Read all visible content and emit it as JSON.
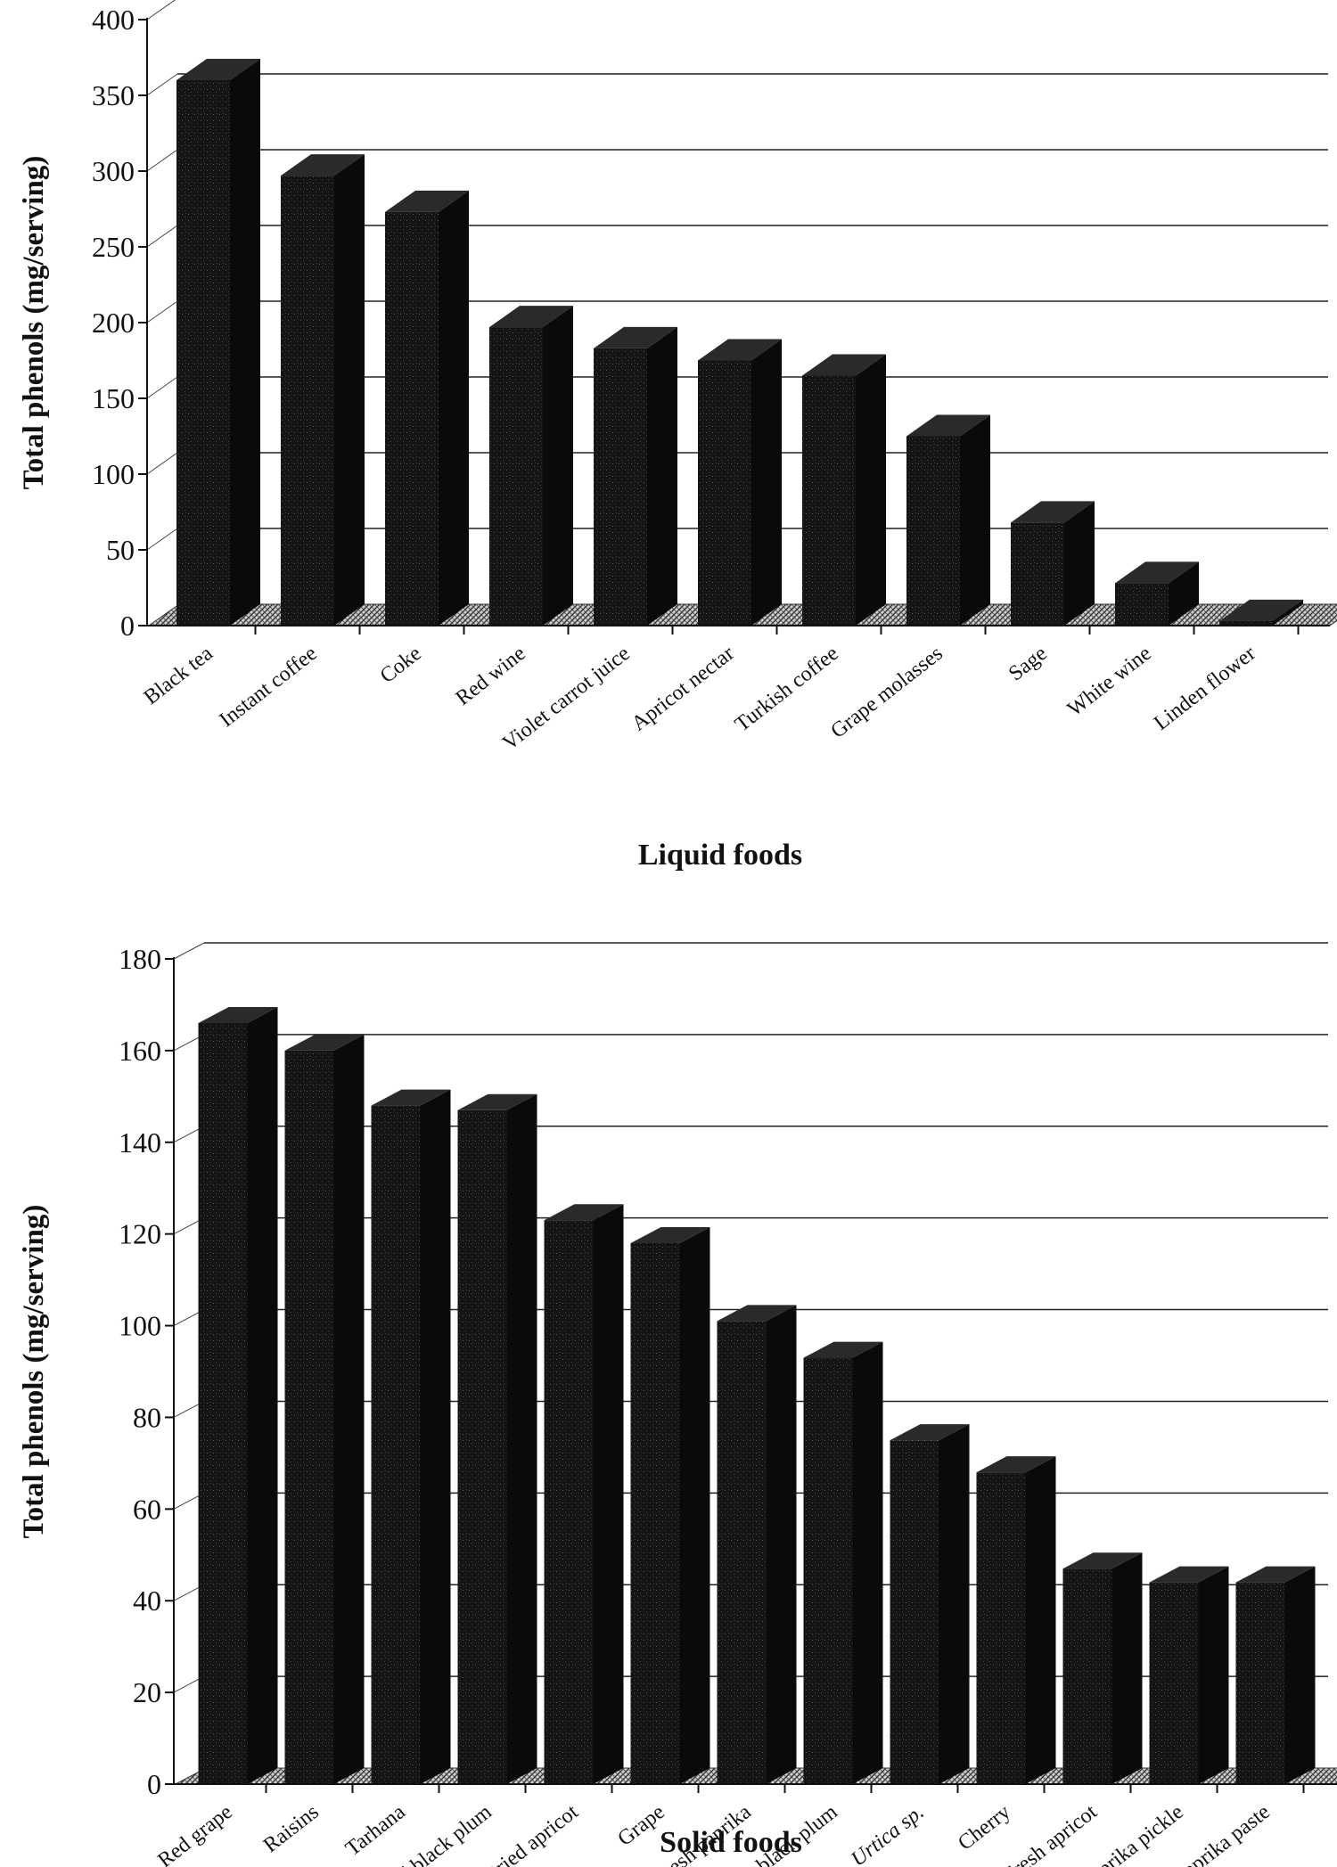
{
  "chart_data": [
    {
      "id": "liquid",
      "type": "bar",
      "xlabel": "Liquid foods",
      "ylabel": "Total phenols (mg/serving)",
      "ylim": [
        0,
        400
      ],
      "yticks": [
        0,
        50,
        100,
        150,
        200,
        250,
        300,
        350,
        400
      ],
      "grid": true,
      "categories": [
        "Black tea",
        "Instant coffee",
        "Coke",
        "Red wine",
        "Violet carrot juice",
        "Apricot nectar",
        "Turkish coffee",
        "Grape molasses",
        "Sage",
        "White wine",
        "Linden flower"
      ],
      "values": [
        360,
        297,
        273,
        197,
        183,
        175,
        165,
        125,
        68,
        28,
        3
      ]
    },
    {
      "id": "solid",
      "type": "bar",
      "xlabel": "Solid foods",
      "ylabel": "Total phenols (mg/serving)",
      "ylim": [
        0,
        180
      ],
      "yticks": [
        0,
        20,
        40,
        60,
        80,
        100,
        120,
        140,
        160,
        180
      ],
      "grid": true,
      "categories": [
        "Red grape",
        "Raisins",
        "Tarhana",
        "Dried black plum",
        "Dried apricot",
        "Grape",
        "Fresh paprika",
        "Fresh black plum",
        "Urtica sp.",
        "Cherry",
        "Fresh apricot",
        "Paprika pickle",
        "Paprika paste"
      ],
      "italic_categories": [
        "Urtica sp."
      ],
      "values": [
        166,
        160,
        148,
        147,
        123,
        118,
        101,
        93,
        75,
        68,
        47,
        44,
        44
      ]
    }
  ]
}
